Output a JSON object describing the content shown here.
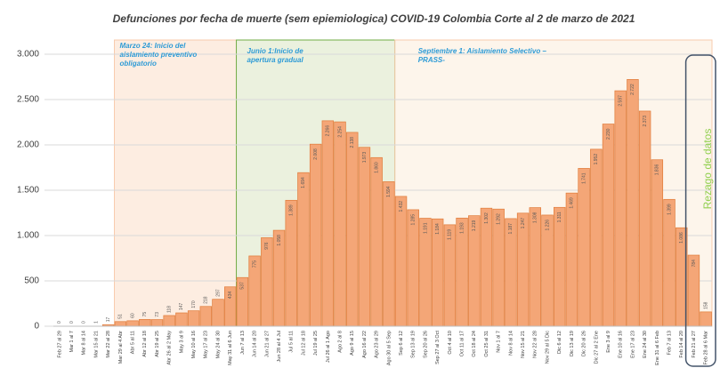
{
  "chart_data": {
    "type": "bar",
    "title": "Defunciones por fecha de muerte (sem epiemiologica) COVID-19 Colombia Corte al 2 de marzo  de 2021",
    "annotations": [
      "Marzo 24: Inicio del aislamiento preventivo obligatorio",
      "Junio 1:Inicio de apertura gradual",
      "Septiembre 1: Aislamiento Selectivo – PRASS-",
      "Rezago de datos"
    ],
    "categories": [
      "Feb 27 al 29",
      "Mar 1 al 7",
      "Mar 8 al 14",
      "Mar 15 al 21",
      "Mar 22 al 28",
      "Mar 29 al 4 Abr",
      "Abr 5 al 11",
      "Abr 12 al 18",
      "Abr 19 al 25",
      "Abr 26 al 2 May",
      "May 3 al 9",
      "May 10 al 16",
      "May 17 al 23",
      "May 24 al 30",
      "May 31 al 6 Jun",
      "Jun 7 al 13",
      "Jun 14 al 20",
      "Jun 21 al 27",
      "Jun 28 al 4 Jul",
      "Jul 5 al 11",
      "Jul 12 al 18",
      "Jul 19 al 25",
      "Jul 26 al 1 Ago",
      "Ago 2 al 8",
      "Ago 9 al 15",
      "Ago 16 al 22",
      "Ago 23 al 29",
      "Ago 30 al 5 Sep",
      "Sep 6 al 12",
      "Sep 13 al 19",
      "Sep 20 al 26",
      "Sep 27 al 3 Oct",
      "Oct 4 al 10",
      "Oct 11 al 17",
      "Oct 18 al 24",
      "Oct 25 al 31",
      "Nov 1 al 7",
      "Nov 8 al 14",
      "Nov 15 al 21",
      "Nov 22 al 28",
      "Nov 29 al 5 Dic",
      "Dic 6 al 12",
      "Dic 13 al 19",
      "Dic 20 al 26",
      "Dic 27 al 2 Ene",
      "Ene 3 al 9",
      "Ene 10 al 16",
      "Ene 17 al 23",
      "Ene 24 al 30",
      "Ene 31 al 6 Feb",
      "Feb 7 al 13",
      "Feb 14 al 20",
      "Feb 21 al 27",
      "Feb 28 al 6 Mar"
    ],
    "values": [
      0,
      0,
      0,
      1,
      17,
      51,
      60,
      75,
      73,
      118,
      147,
      170,
      218,
      297,
      434,
      537,
      775,
      976,
      1058,
      1389,
      1694,
      2008,
      2266,
      2254,
      2138,
      1973,
      1860,
      1594,
      1432,
      1285,
      1191,
      1184,
      1119,
      1193,
      1219,
      1302,
      1292,
      1187,
      1247,
      1308,
      1226,
      1311,
      1469,
      1741,
      1952,
      2230,
      2597,
      2722,
      2373,
      1836,
      1399,
      1086,
      784,
      158
    ],
    "value_labels": [
      "0",
      "0",
      "0",
      "1",
      "17",
      "51",
      "60",
      "75",
      "73",
      "118",
      "147",
      "170",
      "218",
      "297",
      "434",
      "537",
      "775",
      "976",
      "1.058",
      "1.389",
      "1.694",
      "2.008",
      "2.266",
      "2.254",
      "2.138",
      "1.973",
      "1.860",
      "1.594",
      "1.432",
      "1.285",
      "1.191",
      "1.184",
      "1.119",
      "1.193",
      "1.219",
      "1.302",
      "1.292",
      "1.187",
      "1.247",
      "1.308",
      "1.226",
      "1.311",
      "1.469",
      "1.741",
      "1.952",
      "2.230",
      "2.597",
      "2.722",
      "2.373",
      "1.836",
      "1.399",
      "1.086",
      "784",
      "158"
    ],
    "color": "#f4a677",
    "ylim": [
      0,
      3000
    ],
    "yticks": [
      0,
      500,
      {
        "value": 1000,
        "label": "1.000"
      },
      {
        "value": 1500,
        "label": "1.500"
      },
      {
        "value": 2000,
        "label": "2.000"
      },
      {
        "value": 2500,
        "label": "2.500"
      },
      {
        "value": 3000,
        "label": "3.000"
      }
    ],
    "grid": true
  }
}
